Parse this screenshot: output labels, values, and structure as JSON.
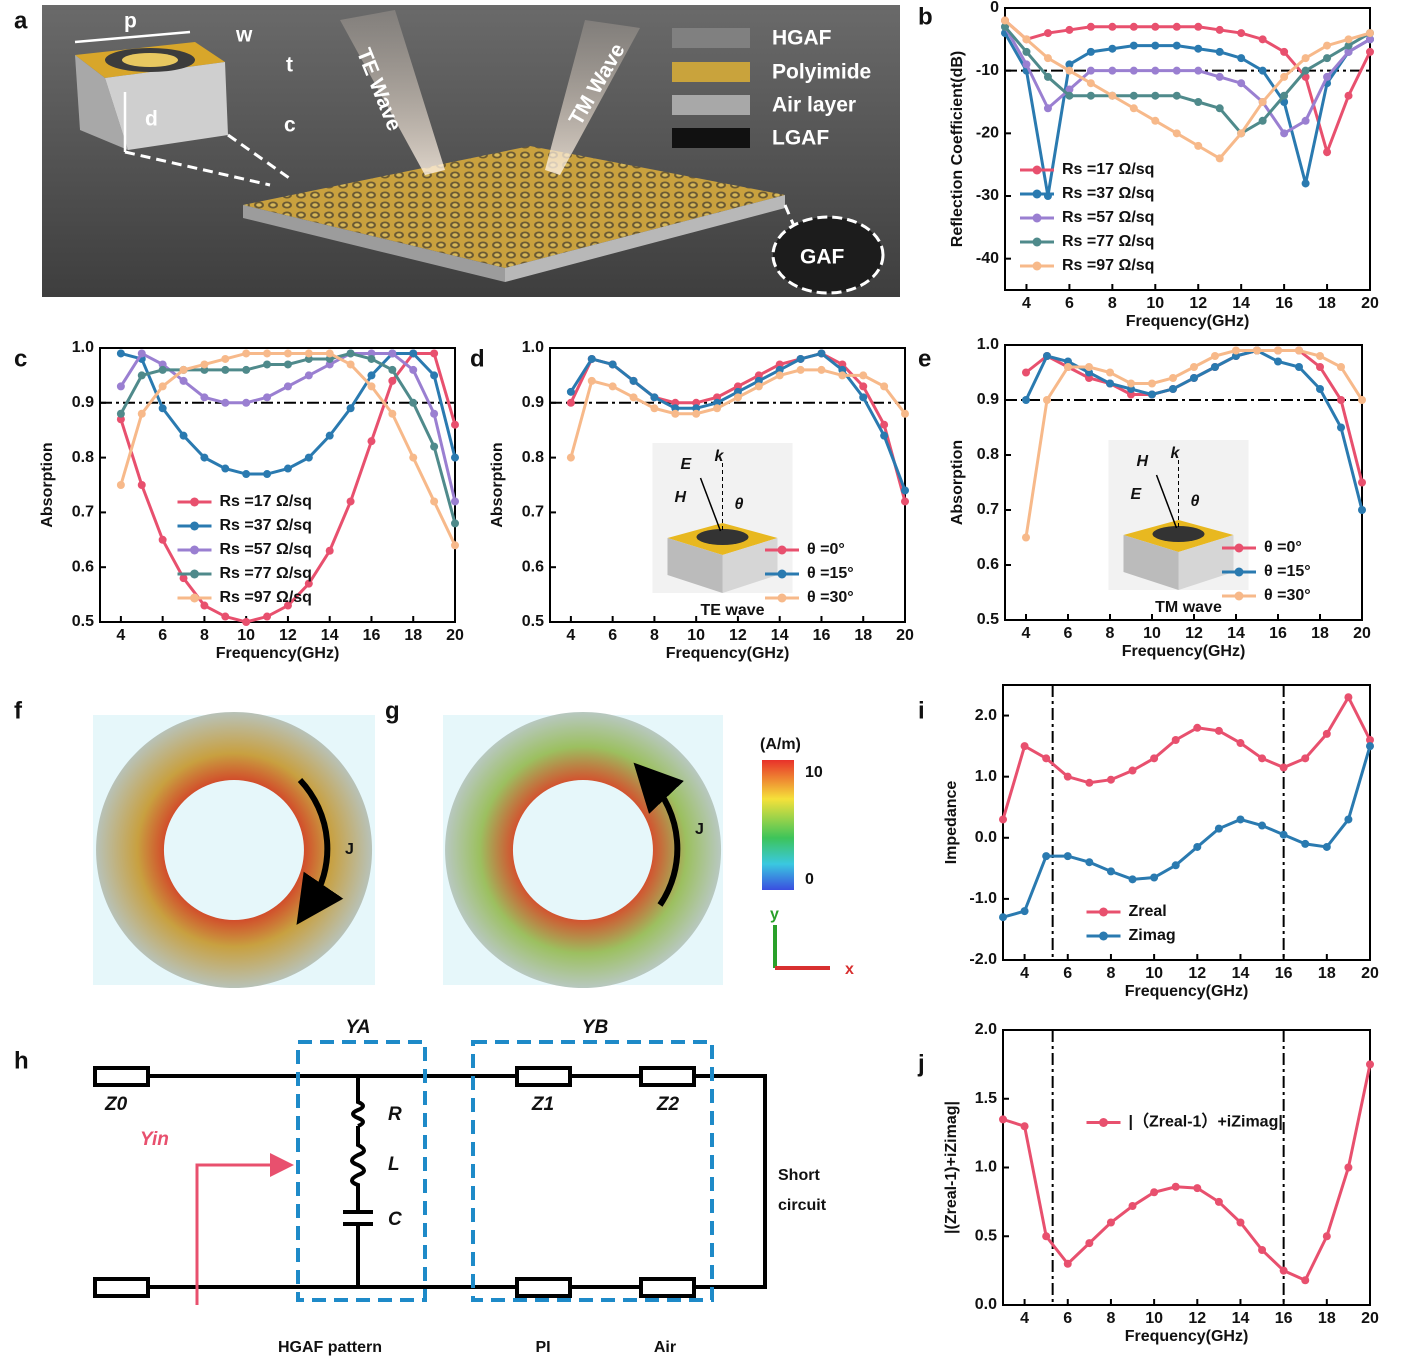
{
  "chart_data": [
    {
      "type": "line",
      "ylabel": "Reflection Coefficient(dB)",
      "xlabel": "Frequency(GHz)",
      "x": [
        3,
        4,
        5,
        6,
        7,
        8,
        9,
        10,
        11,
        12,
        13,
        14,
        15,
        16,
        17,
        18,
        19,
        20
      ],
      "xlim": [
        3,
        20
      ],
      "xticks": [
        4,
        6,
        8,
        10,
        12,
        14,
        16,
        18,
        20
      ],
      "ylim": [
        -45,
        0
      ],
      "yticks": [
        0,
        -10,
        -20,
        -30,
        -40
      ],
      "hlines": [
        -10
      ],
      "legend": "lower left",
      "series": [
        {
          "name": "Rs =17 Ω/sq",
          "color": "#e8506e",
          "values": [
            -2,
            -5,
            -4,
            -3.5,
            -3,
            -3,
            -3,
            -3,
            -3,
            -3,
            -3.5,
            -4,
            -5,
            -7,
            -11,
            -23,
            -14,
            -7
          ]
        },
        {
          "name": "Rs =37 Ω/sq",
          "color": "#2a7ab0",
          "values": [
            -4,
            -10,
            -30,
            -9,
            -7,
            -6.5,
            -6,
            -6,
            -6,
            -6.5,
            -7,
            -8,
            -10,
            -15,
            -28,
            -12,
            -7,
            -5
          ]
        },
        {
          "name": "Rs =57 Ω/sq",
          "color": "#9a7fd1",
          "values": [
            -3,
            -9,
            -16,
            -13,
            -10,
            -10,
            -10,
            -10,
            -10,
            -10,
            -11,
            -12,
            -15,
            -20,
            -18,
            -11,
            -7,
            -5
          ]
        },
        {
          "name": "Rs =77 Ω/sq",
          "color": "#4f8a8b",
          "values": [
            -3,
            -7,
            -11,
            -14,
            -14,
            -14,
            -14,
            -14,
            -14,
            -15,
            -16,
            -20,
            -18,
            -14,
            -10,
            -8,
            -6,
            -4
          ]
        },
        {
          "name": "Rs =97 Ω/sq",
          "color": "#f7b98a",
          "values": [
            -2,
            -5,
            -8,
            -10,
            -12,
            -14,
            -16,
            -18,
            -20,
            -22,
            -24,
            -20,
            -15,
            -11,
            -8,
            -6,
            -5,
            -4
          ]
        }
      ]
    },
    {
      "type": "line",
      "ylabel": "Absorption",
      "xlabel": "Frequency(GHz)",
      "x": [
        4,
        5,
        6,
        7,
        8,
        9,
        10,
        11,
        12,
        13,
        14,
        15,
        16,
        17,
        18,
        19,
        20
      ],
      "xlim": [
        3,
        20
      ],
      "xticks": [
        4,
        6,
        8,
        10,
        12,
        14,
        16,
        18,
        20
      ],
      "ylim": [
        0.5,
        1
      ],
      "yticks": [
        0.5,
        0.6,
        0.7,
        0.8,
        0.9,
        {
          "value": 1,
          "label": "1.0"
        }
      ],
      "hlines": [
        0.9
      ],
      "legend": "lower center",
      "series": [
        {
          "name": "Rs =17 Ω/sq",
          "color": "#e8506e",
          "values": [
            0.87,
            0.75,
            0.65,
            0.58,
            0.53,
            0.51,
            0.5,
            0.51,
            0.53,
            0.57,
            0.63,
            0.72,
            0.83,
            0.94,
            0.99,
            0.99,
            0.86
          ]
        },
        {
          "name": "Rs =37 Ω/sq",
          "color": "#2a7ab0",
          "values": [
            0.99,
            0.98,
            0.89,
            0.84,
            0.8,
            0.78,
            0.77,
            0.77,
            0.78,
            0.8,
            0.84,
            0.89,
            0.95,
            0.99,
            0.99,
            0.95,
            0.8
          ]
        },
        {
          "name": "Rs =57 Ω/sq",
          "color": "#9a7fd1",
          "values": [
            0.93,
            0.99,
            0.97,
            0.94,
            0.91,
            0.9,
            0.9,
            0.91,
            0.93,
            0.95,
            0.97,
            0.99,
            0.99,
            0.99,
            0.96,
            0.88,
            0.72
          ]
        },
        {
          "name": "Rs =77 Ω/sq",
          "color": "#4f8a8b",
          "values": [
            0.88,
            0.95,
            0.96,
            0.96,
            0.96,
            0.96,
            0.96,
            0.97,
            0.97,
            0.98,
            0.98,
            0.99,
            0.98,
            0.96,
            0.9,
            0.82,
            0.68
          ]
        },
        {
          "name": "Rs =97 Ω/sq",
          "color": "#f7b98a",
          "values": [
            0.75,
            0.88,
            0.93,
            0.96,
            0.97,
            0.98,
            0.99,
            0.99,
            0.99,
            0.99,
            0.99,
            0.97,
            0.93,
            0.88,
            0.8,
            0.72,
            0.64
          ]
        }
      ]
    },
    {
      "type": "line",
      "ylabel": "Absorption",
      "xlabel": "Frequency(GHz)",
      "inset": "TE wave",
      "inset_symbols": [
        "E",
        "k",
        "H",
        "θ"
      ],
      "x": [
        4,
        5,
        6,
        7,
        8,
        9,
        10,
        11,
        12,
        13,
        14,
        15,
        16,
        17,
        18,
        19,
        20
      ],
      "xlim": [
        3,
        20
      ],
      "xticks": [
        4,
        6,
        8,
        10,
        12,
        14,
        16,
        18,
        20
      ],
      "ylim": [
        0.5,
        1
      ],
      "yticks": [
        0.5,
        0.6,
        0.7,
        0.8,
        0.9,
        {
          "value": 1,
          "label": "1.0"
        }
      ],
      "hlines": [
        0.9
      ],
      "legend": "lower right",
      "series": [
        {
          "name": "θ =0°",
          "color": "#e8506e",
          "values": [
            0.9,
            0.98,
            0.97,
            0.94,
            0.91,
            0.9,
            0.9,
            0.91,
            0.93,
            0.95,
            0.97,
            0.98,
            0.99,
            0.97,
            0.93,
            0.86,
            0.72
          ]
        },
        {
          "name": "θ =15°",
          "color": "#2a7ab0",
          "values": [
            0.92,
            0.98,
            0.97,
            0.94,
            0.91,
            0.89,
            0.89,
            0.9,
            0.92,
            0.94,
            0.96,
            0.98,
            0.99,
            0.96,
            0.91,
            0.84,
            0.74
          ]
        },
        {
          "name": "θ =30°",
          "color": "#f7b98a",
          "values": [
            0.8,
            0.94,
            0.93,
            0.91,
            0.89,
            0.88,
            0.88,
            0.89,
            0.91,
            0.93,
            0.95,
            0.96,
            0.96,
            0.95,
            0.95,
            0.93,
            0.88
          ]
        }
      ]
    },
    {
      "type": "line",
      "ylabel": "Absorption",
      "xlabel": "Frequency(GHz)",
      "inset": "TM wave",
      "inset_symbols": [
        "H",
        "k",
        "E",
        "θ"
      ],
      "x": [
        4,
        5,
        6,
        7,
        8,
        9,
        10,
        11,
        12,
        13,
        14,
        15,
        16,
        17,
        18,
        19,
        20
      ],
      "xlim": [
        3,
        20
      ],
      "xticks": [
        4,
        6,
        8,
        10,
        12,
        14,
        16,
        18,
        20
      ],
      "ylim": [
        0.5,
        1
      ],
      "yticks": [
        0.5,
        0.6,
        0.7,
        0.8,
        0.9,
        {
          "value": 1,
          "label": "1.0"
        }
      ],
      "hlines": [
        0.9
      ],
      "legend": "lower right",
      "series": [
        {
          "name": "θ =0°",
          "color": "#e8506e",
          "values": [
            0.95,
            0.98,
            0.96,
            0.94,
            0.93,
            0.91,
            0.91,
            0.92,
            0.94,
            0.96,
            0.98,
            0.99,
            0.99,
            0.99,
            0.96,
            0.9,
            0.75
          ]
        },
        {
          "name": "θ =15°",
          "color": "#2a7ab0",
          "values": [
            0.9,
            0.98,
            0.97,
            0.95,
            0.93,
            0.92,
            0.91,
            0.92,
            0.94,
            0.96,
            0.98,
            0.99,
            0.97,
            0.96,
            0.92,
            0.85,
            0.7
          ]
        },
        {
          "name": "θ =30°",
          "color": "#f7b98a",
          "values": [
            0.65,
            0.9,
            0.96,
            0.96,
            0.95,
            0.93,
            0.93,
            0.94,
            0.96,
            0.98,
            0.99,
            0.99,
            0.99,
            0.99,
            0.98,
            0.96,
            0.9
          ]
        }
      ]
    },
    {
      "type": "line",
      "ylabel": "Impedance",
      "xlabel": "Frequency(GHz)",
      "x": [
        3,
        4,
        5,
        6,
        7,
        8,
        9,
        10,
        11,
        12,
        13,
        14,
        15,
        16,
        17,
        18,
        19,
        20
      ],
      "xlim": [
        3,
        20
      ],
      "xticks": [
        4,
        6,
        8,
        10,
        12,
        14,
        16,
        18,
        20
      ],
      "ylim": [
        -2,
        2.5
      ],
      "yticks": [
        {
          "value": -2,
          "label": "-2.0"
        },
        {
          "value": -1,
          "label": "-1.0"
        },
        {
          "value": 0,
          "label": "0.0"
        },
        {
          "value": 1,
          "label": "1.0"
        },
        {
          "value": 2,
          "label": "2.0"
        }
      ],
      "vlines": [
        5.3,
        16
      ],
      "legend": "lower center",
      "series": [
        {
          "name": "Zreal",
          "color": "#e8506e",
          "values": [
            0.3,
            1.5,
            1.3,
            1.0,
            0.9,
            0.95,
            1.1,
            1.3,
            1.6,
            1.8,
            1.75,
            1.55,
            1.3,
            1.15,
            1.3,
            1.7,
            2.3,
            1.6
          ]
        },
        {
          "name": "Zimag",
          "color": "#2a7ab0",
          "values": [
            -1.3,
            -1.2,
            -0.3,
            -0.3,
            -0.4,
            -0.55,
            -0.68,
            -0.65,
            -0.45,
            -0.15,
            0.15,
            0.3,
            0.2,
            0.05,
            -0.1,
            -0.15,
            0.3,
            1.5
          ]
        }
      ]
    },
    {
      "type": "line",
      "ylabel": "|(Zreal-1)+iZimag|",
      "xlabel": "Frequency(GHz)",
      "x": [
        3,
        4,
        5,
        6,
        7,
        8,
        9,
        10,
        11,
        12,
        13,
        14,
        15,
        16,
        17,
        18,
        19,
        20
      ],
      "xlim": [
        3,
        20
      ],
      "xticks": [
        4,
        6,
        8,
        10,
        12,
        14,
        16,
        18,
        20
      ],
      "ylim": [
        0,
        2
      ],
      "yticks": [
        {
          "value": 0,
          "label": "0.0"
        },
        0.5,
        {
          "value": 1,
          "label": "1.0"
        },
        1.5,
        {
          "value": 2,
          "label": "2.0"
        }
      ],
      "vlines": [
        5.3,
        16
      ],
      "legend": "center",
      "series": [
        {
          "name": "|（Zreal-1）+iZimag|",
          "color": "#e8506e",
          "values": [
            1.35,
            1.3,
            0.5,
            0.3,
            0.45,
            0.6,
            0.72,
            0.82,
            0.86,
            0.85,
            0.75,
            0.6,
            0.4,
            0.25,
            0.18,
            0.5,
            1.0,
            1.75
          ]
        }
      ]
    }
  ],
  "figure": {
    "panel_labels": [
      "a",
      "b",
      "c",
      "d",
      "e",
      "f",
      "g",
      "h",
      "i",
      "j"
    ],
    "panel_a": {
      "legend": [
        "HGAF",
        "Polyimide",
        "Air layer",
        "LGAF"
      ],
      "waves": [
        "TE Wave",
        "TM Wave"
      ],
      "dims": [
        "p",
        "w",
        "t",
        "d",
        "c"
      ],
      "inset": "GAF"
    },
    "panel_fg": {
      "unit": "(A/m)",
      "max": "10",
      "min": "0",
      "current": "J",
      "axes": [
        "y",
        "x"
      ]
    },
    "panel_h": {
      "z0": "Z0",
      "yin": "Yin",
      "ya": "YA",
      "yb": "YB",
      "r": "R",
      "l": "L",
      "c": "C",
      "z1": "Z1",
      "z2": "Z2",
      "short_circuit": [
        "Short",
        "circuit"
      ],
      "bottom": [
        "HGAF pattern",
        "PI",
        "Air"
      ]
    }
  }
}
